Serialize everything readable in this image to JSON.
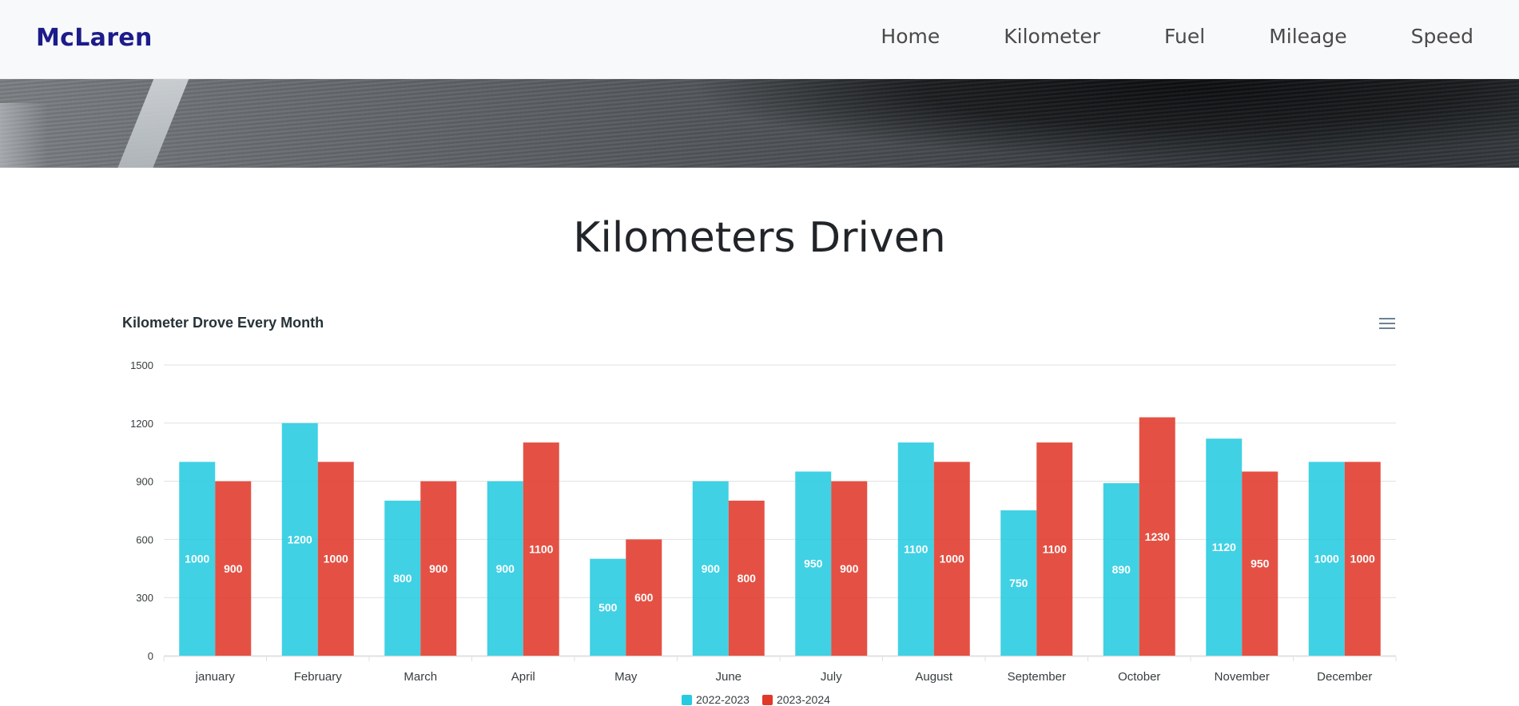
{
  "navbar": {
    "brand": "McLaren",
    "links": [
      "Home",
      "Kilometer",
      "Fuel",
      "Mileage",
      "Speed"
    ]
  },
  "page": {
    "title": "Kilometers Driven"
  },
  "colors": {
    "brand": "#1c1c8a",
    "series_a": "#26cbe0",
    "series_b": "#e0392a"
  },
  "icons": {
    "chart_menu": "hamburger-menu-icon"
  },
  "chart_data": {
    "type": "bar",
    "title": "Kilometer Drove Every Month",
    "xlabel": "",
    "ylabel": "",
    "ylim": [
      0,
      1500
    ],
    "yticks": [
      0,
      300,
      600,
      900,
      1200,
      1500
    ],
    "grid": true,
    "legend_position": "bottom-center",
    "categories": [
      "january",
      "February",
      "March",
      "April",
      "May",
      "June",
      "July",
      "August",
      "September",
      "October",
      "November",
      "December"
    ],
    "series": [
      {
        "name": "2022-2023",
        "color": "#26cbe0",
        "values": [
          1000,
          1200,
          800,
          900,
          500,
          900,
          950,
          1100,
          750,
          890,
          1120,
          1000
        ]
      },
      {
        "name": "2023-2024",
        "color": "#e0392a",
        "values": [
          900,
          1000,
          900,
          1100,
          600,
          800,
          900,
          1000,
          1100,
          1230,
          950,
          1000
        ]
      }
    ]
  }
}
